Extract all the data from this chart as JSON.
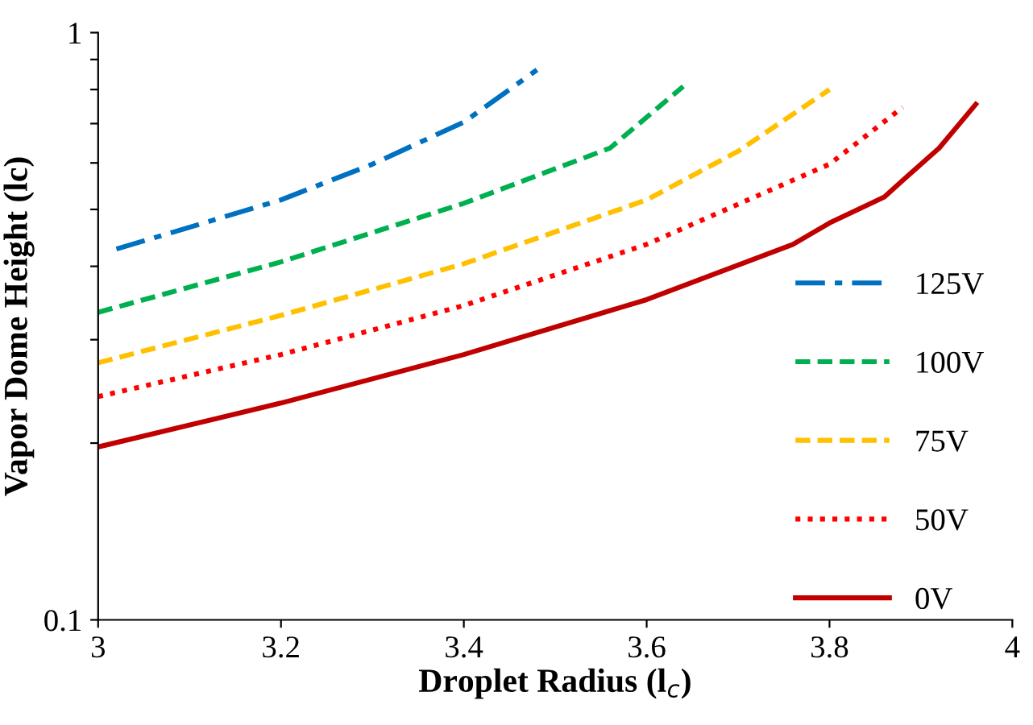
{
  "chart_data": {
    "type": "line",
    "xlabel": "Droplet Radius (l$_{c}$)",
    "ylabel": "Vapor Dome Height (lc)",
    "log": "y",
    "xlim": [
      3,
      4
    ],
    "ylim": [
      0.1,
      1
    ],
    "xticks": [
      3,
      3.2,
      3.4,
      3.6,
      3.8,
      4
    ],
    "yticks": [
      0.1,
      {
        "value": 0.2,
        "label": null
      },
      {
        "value": 0.3,
        "label": null
      },
      {
        "value": 0.4,
        "label": null
      },
      {
        "value": 0.5,
        "label": null
      },
      {
        "value": 0.6,
        "label": null
      },
      {
        "value": 0.7,
        "label": null
      },
      {
        "value": 0.8,
        "label": null
      },
      {
        "value": 0.9,
        "label": null
      },
      1
    ],
    "grid": false,
    "legend": "right",
    "marker": "none",
    "series": [
      {
        "name": "125V",
        "color": "#0070c0",
        "line_style": "dashdot",
        "x": [
          3.02,
          3.2,
          3.3,
          3.4,
          3.48
        ],
        "values": [
          0.428,
          0.519,
          0.597,
          0.704,
          0.864
        ]
      },
      {
        "name": "100V",
        "color": "#00b050",
        "line_style": "dashed",
        "x": [
          3,
          3.2,
          3.4,
          3.56,
          3.64
        ],
        "values": [
          0.334,
          0.407,
          0.512,
          0.636,
          0.81
        ]
      },
      {
        "name": "75V",
        "color": "#ffc000",
        "line_style": "dashed",
        "x": [
          3,
          3.2,
          3.4,
          3.6,
          3.7,
          3.8
        ],
        "values": [
          0.274,
          0.33,
          0.404,
          0.519,
          0.628,
          0.8
        ]
      },
      {
        "name": "50V",
        "color": "#ff0000",
        "line_style": "dotted",
        "x": [
          3,
          3.2,
          3.4,
          3.6,
          3.8,
          3.88
        ],
        "values": [
          0.24,
          0.283,
          0.343,
          0.436,
          0.597,
          0.746
        ]
      },
      {
        "name": "0V",
        "color": "#c00000",
        "line_style": "solid",
        "x": [
          3,
          3.2,
          3.4,
          3.6,
          3.76,
          3.8,
          3.86,
          3.88,
          3.92,
          3.96
        ],
        "values": [
          0.197,
          0.234,
          0.283,
          0.351,
          0.436,
          0.474,
          0.525,
          0.56,
          0.636,
          0.755
        ]
      }
    ]
  }
}
